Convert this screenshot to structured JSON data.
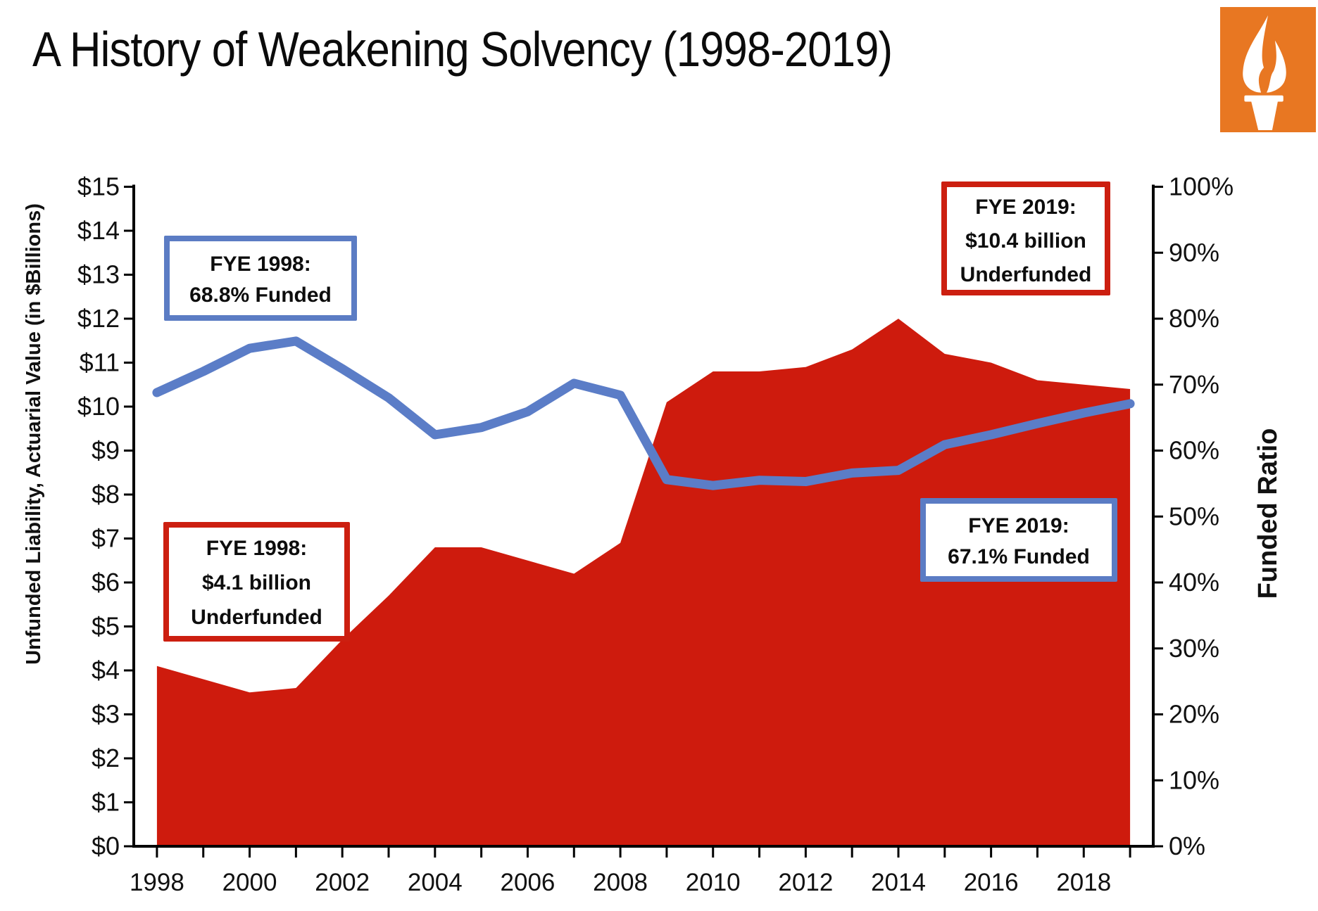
{
  "header": {
    "title": "A History of Weakening Solvency (1998-2019)"
  },
  "logo": {
    "icon": "torch-icon",
    "background": "#E87722",
    "glyph_color": "#FFFFFF"
  },
  "colors": {
    "area_red": "#CE1B0D",
    "line_blue": "#5B7DC7",
    "box_border_red": "#CC1F10",
    "box_border_blue": "#5B7CC4",
    "axis_black": "#000000"
  },
  "chart_data": {
    "type": "area",
    "x": [
      1998,
      1999,
      2000,
      2001,
      2002,
      2003,
      2004,
      2005,
      2006,
      2007,
      2008,
      2009,
      2010,
      2011,
      2012,
      2013,
      2014,
      2015,
      2016,
      2017,
      2018,
      2019
    ],
    "series": [
      {
        "name": "Unfunded Liability, Actuarial Value ($Billions)",
        "type": "area",
        "axis": "left",
        "color": "#CE1B0D",
        "values": [
          4.1,
          3.8,
          3.5,
          3.6,
          4.7,
          5.7,
          6.8,
          6.8,
          6.5,
          6.2,
          6.9,
          10.1,
          10.8,
          10.8,
          10.9,
          11.3,
          12.0,
          11.2,
          11.0,
          10.6,
          10.5,
          10.4
        ]
      },
      {
        "name": "Funded Ratio (%)",
        "type": "line",
        "axis": "right",
        "color": "#5B7DC7",
        "values": [
          68.8,
          72.0,
          75.5,
          76.6,
          72.4,
          68.0,
          62.4,
          63.5,
          65.9,
          70.2,
          68.4,
          55.6,
          54.7,
          55.5,
          55.3,
          56.6,
          57.0,
          60.9,
          62.4,
          64.1,
          65.7,
          67.1
        ]
      }
    ],
    "left_axis": {
      "title": "Unfunded Liability, Actuarial Value (in $Billions)",
      "range": [
        0,
        15
      ],
      "tick_values": [
        15,
        14,
        13,
        12,
        11,
        10,
        9,
        8,
        7,
        6,
        5,
        4,
        3,
        2,
        1,
        0
      ],
      "tick_labels": [
        "$15",
        "$14",
        "$13",
        "$12",
        "$11",
        "$10",
        "$9",
        "$8",
        "$7",
        "$6",
        "$5",
        "$4",
        "$3",
        "$2",
        "$1",
        "$0"
      ]
    },
    "right_axis": {
      "title": "Funded Ratio",
      "range": [
        0,
        100
      ],
      "tick_values": [
        100,
        90,
        80,
        70,
        60,
        50,
        40,
        30,
        20,
        10,
        0
      ],
      "tick_labels": [
        "100%",
        "90%",
        "80%",
        "70%",
        "60%",
        "50%",
        "40%",
        "30%",
        "20%",
        "10%",
        "0%"
      ]
    },
    "x_axis": {
      "tick_values": [
        1998,
        2000,
        2002,
        2004,
        2006,
        2008,
        2010,
        2012,
        2014,
        2016,
        2018
      ],
      "tick_labels": [
        "1998",
        "2000",
        "2002",
        "2004",
        "2006",
        "2008",
        "2010",
        "2012",
        "2014",
        "2016",
        "2018"
      ]
    },
    "grid": false,
    "legend": "none"
  },
  "annotations": [
    {
      "style": "blue",
      "lines": [
        "FYE 1998:",
        "68.8% Funded"
      ]
    },
    {
      "style": "red",
      "lines": [
        "FYE 1998:",
        "$4.1 billion",
        "Underfunded"
      ]
    },
    {
      "style": "red",
      "lines": [
        "FYE 2019:",
        "$10.4 billion",
        "Underfunded"
      ]
    },
    {
      "style": "blue",
      "lines": [
        "FYE 2019:",
        "67.1% Funded"
      ]
    }
  ]
}
